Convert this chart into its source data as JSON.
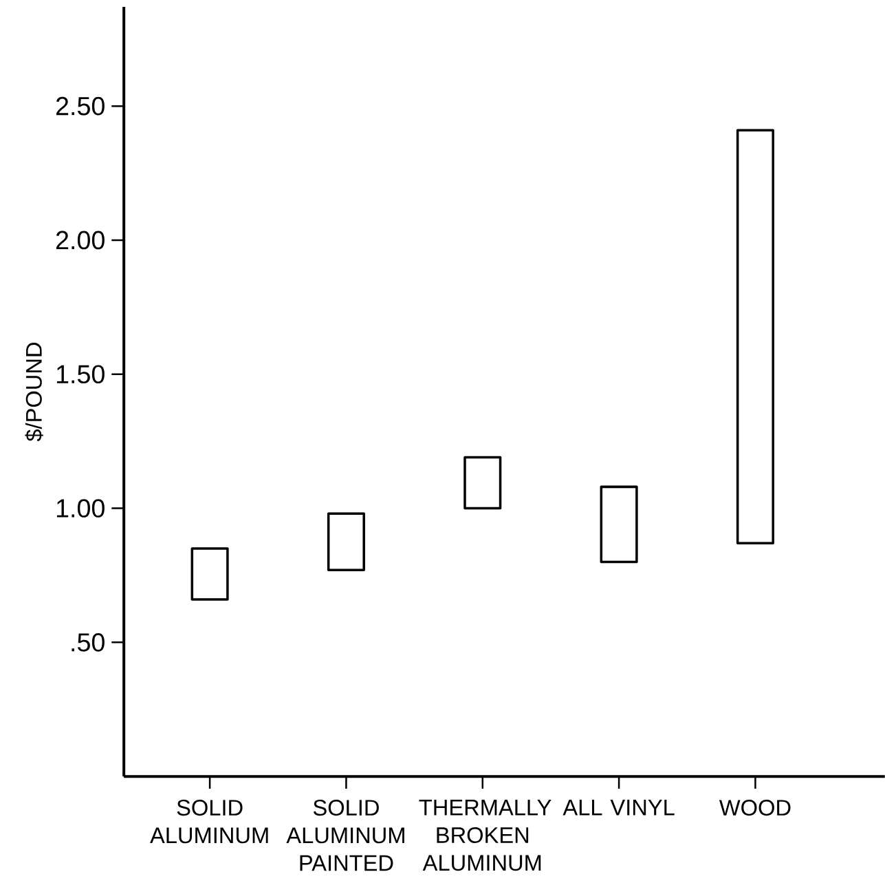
{
  "chart_data": {
    "type": "bar",
    "ylabel": "$/POUND",
    "categories": [
      "SOLID ALUMINUM",
      "SOLID ALUMINUM PAINTED",
      "THERMALLY BROKEN ALUMINUM",
      "ALL VINYL",
      "WOOD"
    ],
    "base": [
      0.66,
      0.77,
      1.0,
      0.8,
      0.87
    ],
    "values": [
      0.19,
      0.21,
      0.19,
      0.28,
      1.54
    ],
    "color": "#000000",
    "ylim": [
      0,
      2.87
    ],
    "yticks": [
      {
        "value": 0.5,
        "label": ".50"
      },
      {
        "value": 1.0,
        "label": "1.00"
      },
      {
        "value": 1.5,
        "label": "1.50"
      },
      {
        "value": 2.0,
        "label": "2.00"
      },
      {
        "value": 2.5,
        "label": "2.50"
      }
    ]
  }
}
